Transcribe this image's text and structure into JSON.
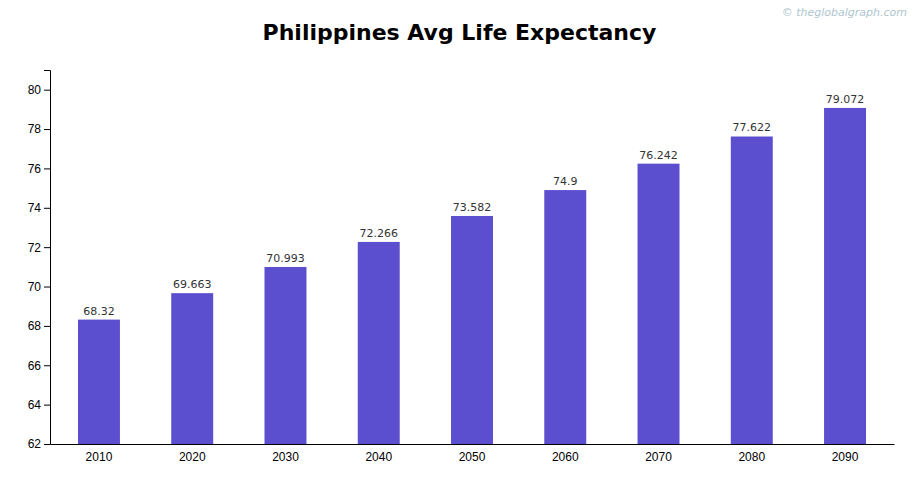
{
  "chart_data": {
    "type": "bar",
    "title": "Philippines Avg Life Expectancy",
    "categories": [
      "2010",
      "2020",
      "2030",
      "2040",
      "2050",
      "2060",
      "2070",
      "2080",
      "2090"
    ],
    "values": [
      68.32,
      69.663,
      70.993,
      72.266,
      73.582,
      74.9,
      76.242,
      77.622,
      79.072
    ],
    "color": "#5b4fcf",
    "ylim": [
      62,
      81
    ],
    "yticks": [
      62,
      64,
      66,
      68,
      70,
      72,
      74,
      76,
      78,
      80
    ],
    "grid": false,
    "data_labels": true,
    "annotations": [
      "© theglobalgraph.com"
    ]
  }
}
